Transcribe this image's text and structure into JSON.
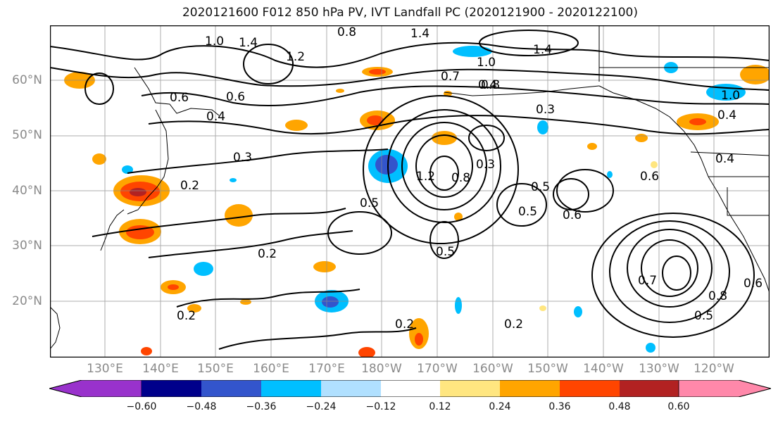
{
  "title": "2020121600 F012 850 hPa PV, IVT Landfall PC (2020121900 - 2020122100)",
  "lat_labels": [
    "60°N",
    "50°N",
    "40°N",
    "30°N",
    "20°N"
  ],
  "lon_labels": [
    "130°E",
    "140°E",
    "150°E",
    "160°E",
    "170°E",
    "180°W",
    "170°W",
    "160°W",
    "150°W",
    "140°W",
    "130°W",
    "120°W"
  ],
  "contour_labels": [
    "1.0",
    "1.4",
    "1.2",
    "0.8",
    "1.4",
    "1.0",
    "1.4",
    "0.7",
    "0.8",
    "0.6",
    "0.4",
    "0.6",
    "0.4",
    "0.3",
    "0.2",
    "0.2",
    "0.2",
    "0.5",
    "1.2",
    "0.8",
    "0.3",
    "0.5",
    "0.5",
    "0.6",
    "0.6",
    "0.3",
    "1.0",
    "0.4",
    "0.4",
    "0.5",
    "0.2",
    "0.2",
    "0.7",
    "0.8",
    "0.5",
    "0.6"
  ],
  "colorbar": {
    "ticks": [
      "−0.60",
      "−0.48",
      "−0.36",
      "−0.24",
      "−0.12",
      "0.12",
      "0.24",
      "0.36",
      "0.48",
      "0.60"
    ],
    "colors": [
      "#9932cc",
      "#00008b",
      "#3355cc",
      "#00bfff",
      "#b0e0ff",
      "#ffffff",
      "#ffe680",
      "#ffa500",
      "#ff4500",
      "#b22222",
      "#ff88aa"
    ]
  }
}
